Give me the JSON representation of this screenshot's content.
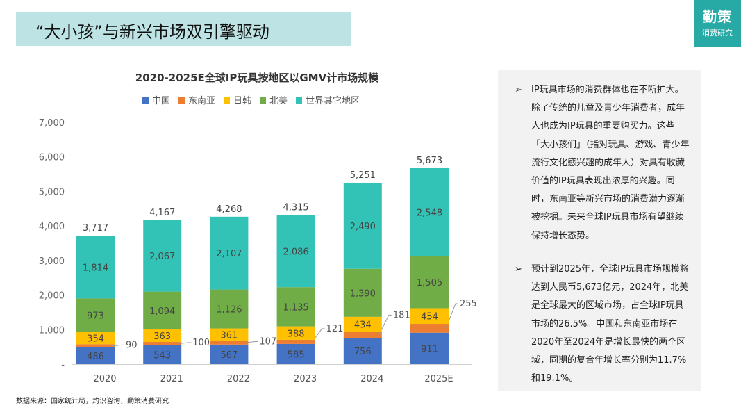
{
  "header": {
    "title": "“大小孩”与新兴市场双引擎驱动"
  },
  "logo": {
    "line1": "勤策",
    "line2": "消费研究",
    "color": "#27a9a5"
  },
  "panel": {
    "bullets": [
      "IP玩具市场的消费群体也在不断扩大。除了传统的儿童及青少年消费者，成年人也成为IP玩具的重要购买力。这些「大小孩们」（指对玩具、游戏、青少年流行文化感兴趣的成年人）对具有收藏价值的IP玩具表现出浓厚的兴趣。同时，东南亚等新兴市场的消费潜力逐渐被挖掘。未来全球IP玩具市场有望继续保持增长态势。",
      "预计到2025年，全球IP玩具市场规模将达到人民币5,673亿元，2024年，北美是全球最大的区域市场，占全球IP玩具市场的26.5%。中国和东南亚市场在2020年至2024年是增长最快的两个区域，同期的复合年增长率分别为11.7%和19.1%。"
    ],
    "bullet_icon": "arrowhead-bullet-icon"
  },
  "source": "数据来源：国家统计局，灼识咨询，勤策消费研究",
  "chart_data": {
    "type": "bar",
    "stacked": true,
    "title": "2020-2025E全球IP玩具按地区以GMV计市场规模",
    "categories": [
      "2020",
      "2021",
      "2022",
      "2023",
      "2024",
      "2025E"
    ],
    "series": [
      {
        "name": "中国",
        "color": "#4472c4",
        "values": [
          486,
          543,
          567,
          585,
          756,
          911
        ]
      },
      {
        "name": "东南亚",
        "color": "#ed7d31",
        "values": [
          90,
          100,
          107,
          121,
          181,
          255
        ]
      },
      {
        "name": "日韩",
        "color": "#ffc000",
        "values": [
          354,
          363,
          361,
          388,
          434,
          454
        ]
      },
      {
        "name": "北美",
        "color": "#70ad47",
        "values": [
          973,
          1094,
          1126,
          1135,
          1390,
          1505
        ]
      },
      {
        "name": "世界其它地区",
        "color": "#33c3b6",
        "values": [
          1814,
          2067,
          2107,
          2086,
          2490,
          2548
        ]
      }
    ],
    "totals": [
      3717,
      4167,
      4268,
      4315,
      5251,
      5673
    ],
    "yticks": [
      "-",
      "1,000",
      "2,000",
      "3,000",
      "4,000",
      "5,000",
      "6,000",
      "7,000"
    ],
    "ylim": [
      0,
      7000
    ],
    "legend": "top",
    "grid": false
  }
}
